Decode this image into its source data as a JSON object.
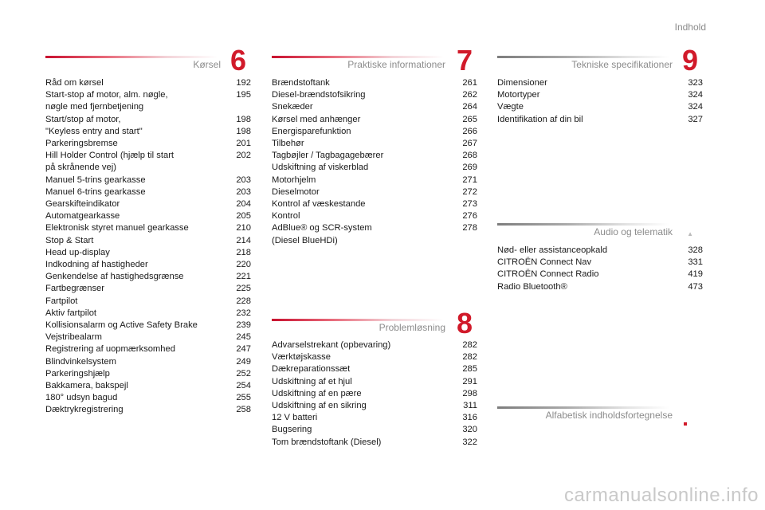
{
  "header": {
    "contents_link": "Indhold"
  },
  "sections": {
    "korsel": {
      "title": "Kørsel",
      "number": "6",
      "entries": [
        {
          "text": "Råd om kørsel",
          "page": "192"
        },
        {
          "text": "Start-stop af motor, alm. nøgle,\n   nøgle med fjernbetjening",
          "page": "195"
        },
        {
          "text": "Start/stop af motor,",
          "page": "198"
        },
        {
          "text": "\"Keyless entry and start\"",
          "page": "198"
        },
        {
          "text": "Parkeringsbremse",
          "page": "201"
        },
        {
          "text": "Hill Holder Control (hjælp til start\n   på skrånende vej)",
          "page": "202"
        },
        {
          "text": "Manuel 5-trins gearkasse",
          "page": "203"
        },
        {
          "text": "Manuel 6-trins gearkasse",
          "page": "203"
        },
        {
          "text": "Gearskifteindikator",
          "page": "204"
        },
        {
          "text": "Automatgearkasse",
          "page": "205"
        },
        {
          "text": "Elektronisk styret manuel gearkasse",
          "page": "210"
        },
        {
          "text": "Stop & Start",
          "page": "214"
        },
        {
          "text": "Head up-display",
          "page": "218"
        },
        {
          "text": "Indkodning af hastigheder",
          "page": "220"
        },
        {
          "text": "Genkendelse af hastighedsgrænse",
          "page": "221"
        },
        {
          "text": "Fartbegrænser",
          "page": "225"
        },
        {
          "text": "Fartpilot",
          "page": "228"
        },
        {
          "text": "Aktiv fartpilot",
          "page": "232"
        },
        {
          "text": "Kollisionsalarm og Active Safety Brake",
          "page": "239"
        },
        {
          "text": "Vejstribealarm",
          "page": "245"
        },
        {
          "text": "Registrering af uopmærksomhed",
          "page": "247"
        },
        {
          "text": "Blindvinkelsystem",
          "page": "249"
        },
        {
          "text": "Parkeringshjælp",
          "page": "252"
        },
        {
          "text": "Bakkamera, bakspejl",
          "page": "254"
        },
        {
          "text": "180° udsyn bagud",
          "page": "255"
        },
        {
          "text": "Dæktrykregistrering",
          "page": "258"
        }
      ]
    },
    "praktiske": {
      "title": "Praktiske informationer",
      "number": "7",
      "entries": [
        {
          "text": "Brændstoftank",
          "page": "261"
        },
        {
          "text": "Diesel-brændstofsikring",
          "page": "262"
        },
        {
          "text": "Snekæder",
          "page": "264"
        },
        {
          "text": "Kørsel med anhænger",
          "page": "265"
        },
        {
          "text": "Energisparefunktion",
          "page": "266"
        },
        {
          "text": "Tilbehør",
          "page": "267"
        },
        {
          "text": "Tagbøjler / Tagbagagebærer",
          "page": "268"
        },
        {
          "text": "Udskiftning af viskerblad",
          "page": "269"
        },
        {
          "text": "Motorhjelm",
          "page": "271"
        },
        {
          "text": "Dieselmotor",
          "page": "272"
        },
        {
          "text": "Kontrol af væskestande",
          "page": "273"
        },
        {
          "text": "Kontrol",
          "page": "276"
        },
        {
          "text": "AdBlue® og SCR-system\n   (Diesel BlueHDi)",
          "page": "278"
        }
      ]
    },
    "problemlosning": {
      "title": "Problemløsning",
      "number": "8",
      "entries": [
        {
          "text": "Advarselstrekant (opbevaring)",
          "page": "282"
        },
        {
          "text": "Værktøjskasse",
          "page": "282"
        },
        {
          "text": "Dækreparationssæt",
          "page": "285"
        },
        {
          "text": "Udskiftning af et hjul",
          "page": "291"
        },
        {
          "text": "Udskiftning af en pære",
          "page": "298"
        },
        {
          "text": "Udskiftning af en sikring",
          "page": "311"
        },
        {
          "text": "12 V batteri",
          "page": "316"
        },
        {
          "text": "Bugsering",
          "page": "320"
        },
        {
          "text": "Tom brændstoftank (Diesel)",
          "page": "322"
        }
      ]
    },
    "tekniske": {
      "title": "Tekniske specifikationer",
      "number": "9",
      "entries": [
        {
          "text": "Dimensioner",
          "page": "323"
        },
        {
          "text": "Motortyper",
          "page": "324"
        },
        {
          "text": "Vægte",
          "page": "324"
        },
        {
          "text": "Identifikation af din bil",
          "page": "327"
        }
      ]
    },
    "audio": {
      "title": "Audio og telematik",
      "entries": [
        {
          "text": "Nød- eller assistanceopkald",
          "page": "328"
        },
        {
          "text": "CITROËN Connect Nav",
          "page": "331"
        },
        {
          "text": "CITROËN Connect Radio",
          "page": "419"
        },
        {
          "text": "Radio Bluetooth®",
          "page": "473"
        }
      ]
    },
    "alfabetisk": {
      "title": "Alfabetisk indholdsfortegnelse"
    }
  },
  "footer": {
    "watermark": "carmanualsonline.info"
  },
  "colors": {
    "accent": "#d11a2a",
    "section_title": "#8c8c8c",
    "text": "#1a1a1a"
  }
}
